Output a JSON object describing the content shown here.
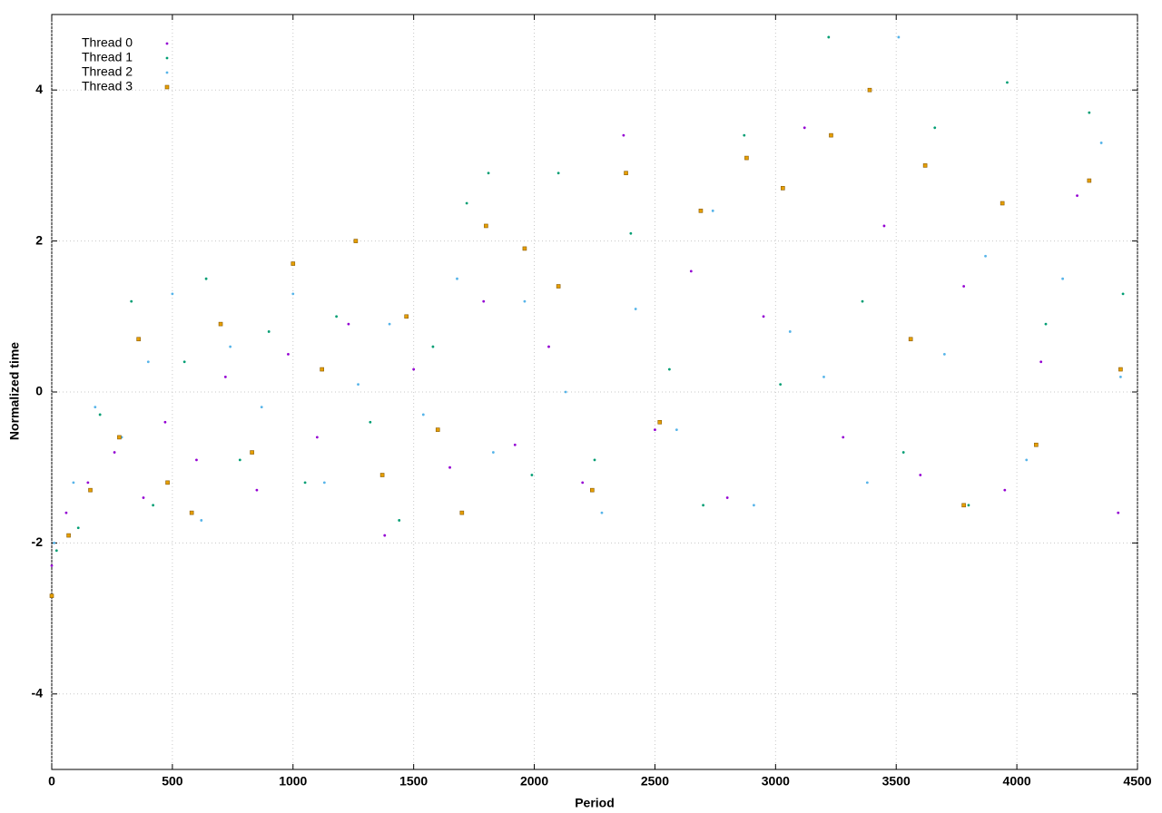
{
  "chart_data": {
    "type": "scatter",
    "x_label": "Period",
    "y_label": "Normalized time",
    "xlim": [
      0,
      4500
    ],
    "ylim": [
      -5,
      5
    ],
    "xticks": [
      0,
      500,
      1000,
      1500,
      2000,
      2500,
      3000,
      3500,
      4000,
      4500
    ],
    "yticks": [
      -4,
      -2,
      0,
      2,
      4
    ],
    "grid": true,
    "legend": "upper-left",
    "series": [
      {
        "name": "Thread 0",
        "color": "#9400d3",
        "marker": "circle",
        "x": [
          0,
          60,
          150,
          260,
          380,
          470,
          600,
          720,
          850,
          980,
          1100,
          1230,
          1380,
          1500,
          1650,
          1790,
          1920,
          2060,
          2200,
          2370,
          2500,
          2650,
          2800,
          2950,
          3120,
          3280,
          3450,
          3600,
          3780,
          3950,
          4100,
          4250,
          4420
        ],
        "values": [
          -2.3,
          -1.6,
          -1.2,
          -0.8,
          -1.4,
          -0.4,
          -0.9,
          0.2,
          -1.3,
          0.5,
          -0.6,
          0.9,
          -1.9,
          0.3,
          -1.0,
          1.2,
          -0.7,
          0.6,
          -1.2,
          3.4,
          -0.5,
          1.6,
          -1.4,
          1.0,
          3.5,
          -0.6,
          2.2,
          -1.1,
          1.4,
          -1.3,
          0.4,
          2.6,
          -1.6
        ]
      },
      {
        "name": "Thread 1",
        "color": "#009e73",
        "marker": "circle",
        "x": [
          20,
          110,
          200,
          330,
          420,
          550,
          640,
          780,
          900,
          1050,
          1180,
          1320,
          1440,
          1580,
          1720,
          1810,
          1990,
          2100,
          2250,
          2400,
          2560,
          2700,
          2870,
          3020,
          3220,
          3360,
          3530,
          3660,
          3800,
          3960,
          4120,
          4300,
          4440
        ],
        "values": [
          -2.1,
          -1.8,
          -0.3,
          1.2,
          -1.5,
          0.4,
          1.5,
          -0.9,
          0.8,
          -1.2,
          1.0,
          -0.4,
          -1.7,
          0.6,
          2.5,
          2.9,
          -1.1,
          2.9,
          -0.9,
          2.1,
          0.3,
          -1.5,
          3.4,
          0.1,
          4.7,
          1.2,
          -0.8,
          3.5,
          -1.5,
          4.1,
          0.9,
          3.7,
          1.3
        ]
      },
      {
        "name": "Thread 2",
        "color": "#56b4e9",
        "marker": "circle",
        "x": [
          10,
          90,
          180,
          290,
          400,
          500,
          620,
          740,
          870,
          1000,
          1130,
          1270,
          1400,
          1540,
          1680,
          1830,
          1960,
          2130,
          2280,
          2420,
          2590,
          2740,
          2910,
          3060,
          3200,
          3380,
          3510,
          3700,
          3870,
          4040,
          4190,
          4350,
          4430
        ],
        "values": [
          -2.0,
          -1.2,
          -0.2,
          -0.6,
          0.4,
          1.3,
          -1.7,
          0.6,
          -0.2,
          1.3,
          -1.2,
          0.1,
          0.9,
          -0.3,
          1.5,
          -0.8,
          1.2,
          0.0,
          -1.6,
          1.1,
          -0.5,
          2.4,
          -1.5,
          0.8,
          0.2,
          -1.2,
          4.7,
          0.5,
          1.8,
          -0.9,
          1.5,
          3.3,
          0.2
        ]
      },
      {
        "name": "Thread 3",
        "color": "#e69f00",
        "marker": "square",
        "x": [
          0,
          70,
          160,
          280,
          360,
          480,
          580,
          700,
          830,
          1000,
          1120,
          1260,
          1370,
          1470,
          1600,
          1700,
          1800,
          1960,
          2100,
          2240,
          2380,
          2520,
          2690,
          2880,
          3030,
          3230,
          3390,
          3560,
          3620,
          3780,
          3940,
          4080,
          4300,
          4430
        ],
        "values": [
          -2.7,
          -1.9,
          -1.3,
          -0.6,
          0.7,
          -1.2,
          -1.6,
          0.9,
          -0.8,
          1.7,
          0.3,
          2.0,
          -1.1,
          1.0,
          -0.5,
          -1.6,
          2.2,
          1.9,
          1.4,
          -1.3,
          2.9,
          -0.4,
          2.4,
          3.1,
          2.7,
          3.4,
          4.0,
          0.7,
          3.0,
          -1.5,
          2.5,
          -0.7,
          2.8,
          0.3
        ]
      }
    ]
  }
}
